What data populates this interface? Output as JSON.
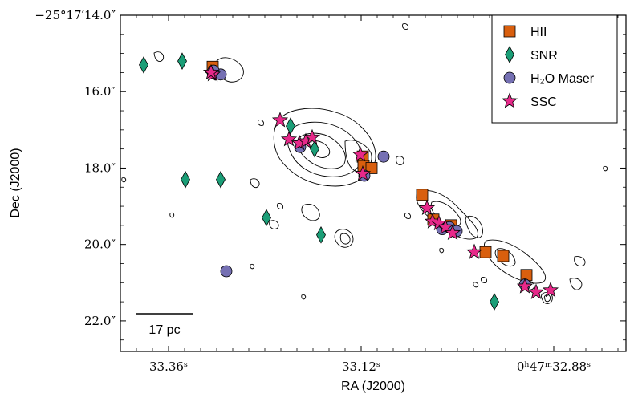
{
  "chart_data": {
    "type": "scatter",
    "title": "",
    "xlabel": "RA (J2000)",
    "ylabel": "Dec (J2000)",
    "x_units": "RA seconds (0h47m..s)",
    "y_units": "Dec arcsec offset (-25°17′..″)",
    "xlim": [
      33.42,
      32.79
    ],
    "ylim": [
      22.8,
      14.0
    ],
    "x_ticks": [
      {
        "value": 33.36,
        "label": "33.36ˢ"
      },
      {
        "value": 33.12,
        "label": "33.12ˢ"
      },
      {
        "value": 32.88,
        "label": "0ʰ47ᵐ32.88ˢ"
      }
    ],
    "y_ticks": [
      {
        "value": 14.0,
        "label": "−25°17′14.0″"
      },
      {
        "value": 16.0,
        "label": "16.0″"
      },
      {
        "value": 18.0,
        "label": "18.0″"
      },
      {
        "value": 20.0,
        "label": "20.0″"
      },
      {
        "value": 22.0,
        "label": "22.0″"
      }
    ],
    "legend": {
      "position": "top-right",
      "entries": [
        {
          "key": "hii",
          "label": "HII"
        },
        {
          "key": "snr",
          "label": "SNR"
        },
        {
          "key": "maser",
          "label": "H₂O Maser"
        },
        {
          "key": "ssc",
          "label": "SSC"
        }
      ]
    },
    "scale_bar": {
      "label": "17 pc"
    },
    "colors": {
      "hii": "#d95f0e",
      "snr": "#1b9e77",
      "maser": "#7570b3",
      "ssc": "#e7298a"
    },
    "series": [
      {
        "key": "hii",
        "name": "HII",
        "points": [
          [
            33.305,
            15.35
          ],
          [
            33.118,
            17.7
          ],
          [
            33.117,
            17.95
          ],
          [
            33.107,
            18.0
          ],
          [
            33.044,
            18.7
          ],
          [
            33.03,
            19.35
          ],
          [
            33.008,
            19.5
          ],
          [
            32.965,
            20.2
          ],
          [
            32.943,
            20.3
          ],
          [
            32.914,
            20.8
          ]
        ]
      },
      {
        "key": "snr",
        "name": "SNR",
        "points": [
          [
            33.391,
            15.3
          ],
          [
            33.343,
            15.2
          ],
          [
            33.339,
            18.3
          ],
          [
            33.295,
            18.3
          ],
          [
            33.208,
            16.9
          ],
          [
            33.178,
            17.5
          ],
          [
            33.238,
            19.3
          ],
          [
            33.17,
            19.75
          ],
          [
            32.954,
            21.5
          ]
        ]
      },
      {
        "key": "maser",
        "name": "H₂O Maser",
        "points": [
          [
            33.305,
            15.5
          ],
          [
            33.295,
            15.55
          ],
          [
            33.304,
            15.45
          ],
          [
            33.196,
            17.45
          ],
          [
            33.116,
            18.2
          ],
          [
            33.092,
            17.7
          ],
          [
            33.019,
            19.6
          ],
          [
            33.01,
            19.55
          ],
          [
            33.001,
            19.65
          ],
          [
            32.916,
            21.05
          ],
          [
            33.288,
            20.7
          ]
        ]
      },
      {
        "key": "ssc",
        "name": "SSC",
        "points": [
          [
            33.305,
            15.55
          ],
          [
            33.307,
            15.5
          ],
          [
            33.221,
            16.75
          ],
          [
            33.21,
            17.25
          ],
          [
            33.197,
            17.35
          ],
          [
            33.189,
            17.3
          ],
          [
            33.181,
            17.2
          ],
          [
            33.121,
            17.65
          ],
          [
            33.118,
            18.15
          ],
          [
            33.038,
            19.05
          ],
          [
            33.031,
            19.4
          ],
          [
            33.023,
            19.45
          ],
          [
            33.015,
            19.55
          ],
          [
            33.006,
            19.7
          ],
          [
            32.979,
            20.2
          ],
          [
            32.916,
            21.1
          ],
          [
            32.902,
            21.25
          ],
          [
            32.884,
            21.2
          ]
        ]
      }
    ]
  }
}
